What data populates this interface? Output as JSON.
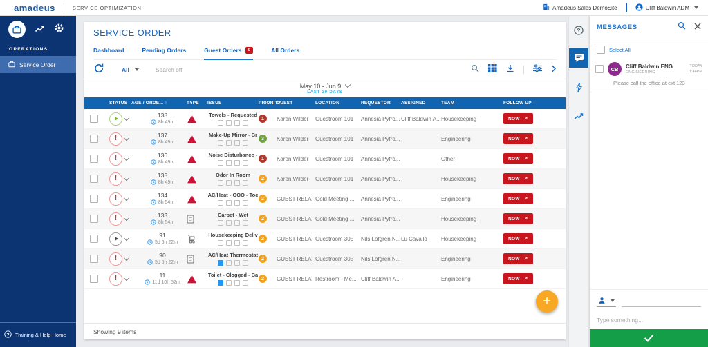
{
  "topbar": {
    "logo": "amadeus",
    "app_title": "SERVICE OPTIMIZATION",
    "site": "Amadeus Sales DemoSite",
    "user": "Cliff Baldwin ADM"
  },
  "sidebar": {
    "section": "OPERATIONS",
    "active_item": "Service Order",
    "footer": "Training & Help Home"
  },
  "page": {
    "title": "SERVICE ORDER",
    "tabs": [
      {
        "label": "Dashboard",
        "active": false
      },
      {
        "label": "Pending Orders",
        "active": false
      },
      {
        "label": "Guest Orders",
        "badge": "9",
        "active": true
      },
      {
        "label": "All Orders",
        "active": false
      }
    ],
    "toolbar": {
      "filter": "All",
      "search": "Search off"
    },
    "date_range": "May 10 - Jun 9",
    "date_sub": "LAST 30 DAYS",
    "footer": "Showing 9 items"
  },
  "table": {
    "columns": [
      {
        "label": ""
      },
      {
        "label": "STATUS"
      },
      {
        "label": "AGE / ORDE...",
        "sort": "asc"
      },
      {
        "label": "TYPE"
      },
      {
        "label": "ISSUE"
      },
      {
        "label": "PRIORITY"
      },
      {
        "label": "GUEST"
      },
      {
        "label": "LOCATION"
      },
      {
        "label": "REQUESTOR"
      },
      {
        "label": "ASSIGNED"
      },
      {
        "label": "TEAM"
      },
      {
        "label": "FOLLOW UP",
        "sort": "asc"
      }
    ],
    "rows": [
      {
        "status": "started",
        "order": "138",
        "age": "8h 49m",
        "type": "alert",
        "issue": "Towels - Requested",
        "note_active": false,
        "priority": "1",
        "priority_color": "#b3382c",
        "guest": "Karen Wilder",
        "location": "Guestroom 101",
        "requestor": "Annesia Pyfro...",
        "assigned": "Cliff Baldwin A...",
        "team": "Housekeeping",
        "follow_up": "NOW"
      },
      {
        "status": "alert",
        "order": "137",
        "age": "8h 49m",
        "type": "alert",
        "issue": "Make-Up Mirror - Br",
        "note_active": false,
        "priority": "3",
        "priority_color": "#6fa33c",
        "guest": "Karen Wilder",
        "location": "Guestroom 101",
        "requestor": "Annesia Pyfro...",
        "assigned": "",
        "team": "Engineering",
        "follow_up": "NOW"
      },
      {
        "status": "alert",
        "order": "136",
        "age": "8h 49m",
        "type": "alert",
        "issue": "Noise Disturbance -",
        "note_active": false,
        "priority": "1",
        "priority_color": "#b3382c",
        "guest": "Karen Wilder",
        "location": "Guestroom 101",
        "requestor": "Annesia Pyfro...",
        "assigned": "",
        "team": "Other",
        "follow_up": "NOW"
      },
      {
        "status": "alert",
        "order": "135",
        "age": "8h 49m",
        "type": "alert",
        "issue": "Odor In Room",
        "note_active": false,
        "priority": "2",
        "priority_color": "#f4a21b",
        "guest": "Karen Wilder",
        "location": "Guestroom 101",
        "requestor": "Annesia Pyfro...",
        "assigned": "",
        "team": "Housekeeping",
        "follow_up": "NOW"
      },
      {
        "status": "alert",
        "order": "134",
        "age": "8h 54m",
        "type": "alert",
        "issue": "AC/Heat - OOO - Toc",
        "note_active": false,
        "priority": "2",
        "priority_color": "#f4a21b",
        "guest": "GUEST RELATED",
        "location": "Gold Meeting ...",
        "requestor": "Annesia Pyfro...",
        "assigned": "",
        "team": "Engineering",
        "follow_up": "NOW"
      },
      {
        "status": "alert",
        "order": "133",
        "age": "8h 54m",
        "type": "document",
        "issue": "Carpet - Wet",
        "note_active": false,
        "priority": "2",
        "priority_color": "#f4a21b",
        "guest": "GUEST RELATED",
        "location": "Gold Meeting ...",
        "requestor": "Annesia Pyfro...",
        "assigned": "",
        "team": "Housekeeping",
        "follow_up": "NOW"
      },
      {
        "status": "paused",
        "order": "91",
        "age": "5d 5h 22m",
        "type": "cart",
        "issue": "Housekeeping Deliv",
        "note_active": false,
        "priority": "2",
        "priority_color": "#f4a21b",
        "guest": "GUEST RELATED",
        "location": "Guestroom 305",
        "requestor": "Nils Lofgren N...",
        "assigned": "Lu Cavallo",
        "team": "Housekeeping",
        "follow_up": "NOW"
      },
      {
        "status": "alert",
        "order": "90",
        "age": "5d 5h 22m",
        "type": "document",
        "issue": "AC/Heat Thermostat",
        "note_active": true,
        "priority": "2",
        "priority_color": "#f4a21b",
        "guest": "GUEST RELATED",
        "location": "Guestroom 305",
        "requestor": "Nils Lofgren N...",
        "assigned": "",
        "team": "Engineering",
        "follow_up": "NOW"
      },
      {
        "status": "alert",
        "order": "11",
        "age": "11d 10h 52m",
        "type": "alert",
        "issue": "Toilet - Clogged - Ba",
        "note_active": true,
        "priority": "2",
        "priority_color": "#f4a21b",
        "guest": "GUEST RELATED",
        "location": "Restroom - Me...",
        "requestor": "Cliff Baldwin A...",
        "assigned": "",
        "team": "Engineering",
        "follow_up": "NOW"
      }
    ]
  },
  "messages": {
    "title": "MESSAGES",
    "select_all": "Select All",
    "items": [
      {
        "initials": "CB",
        "name": "Cliff Baldwin ENG",
        "team": "ENGINEERING",
        "date": "TODAY",
        "time": "1:46PM",
        "text": "Please call the office at ext 123"
      }
    ],
    "placeholder": "Type something..."
  },
  "colors": {
    "header_blue": "#1165b0",
    "accent_blue": "#1565c0",
    "sidebar_navy": "#0c3473",
    "alert_red": "#c9151e",
    "fab_orange": "#f9a825",
    "send_green": "#149e48",
    "avatar_purple": "#8e2a8e",
    "date_sub_cyan": "#29b6f6"
  }
}
